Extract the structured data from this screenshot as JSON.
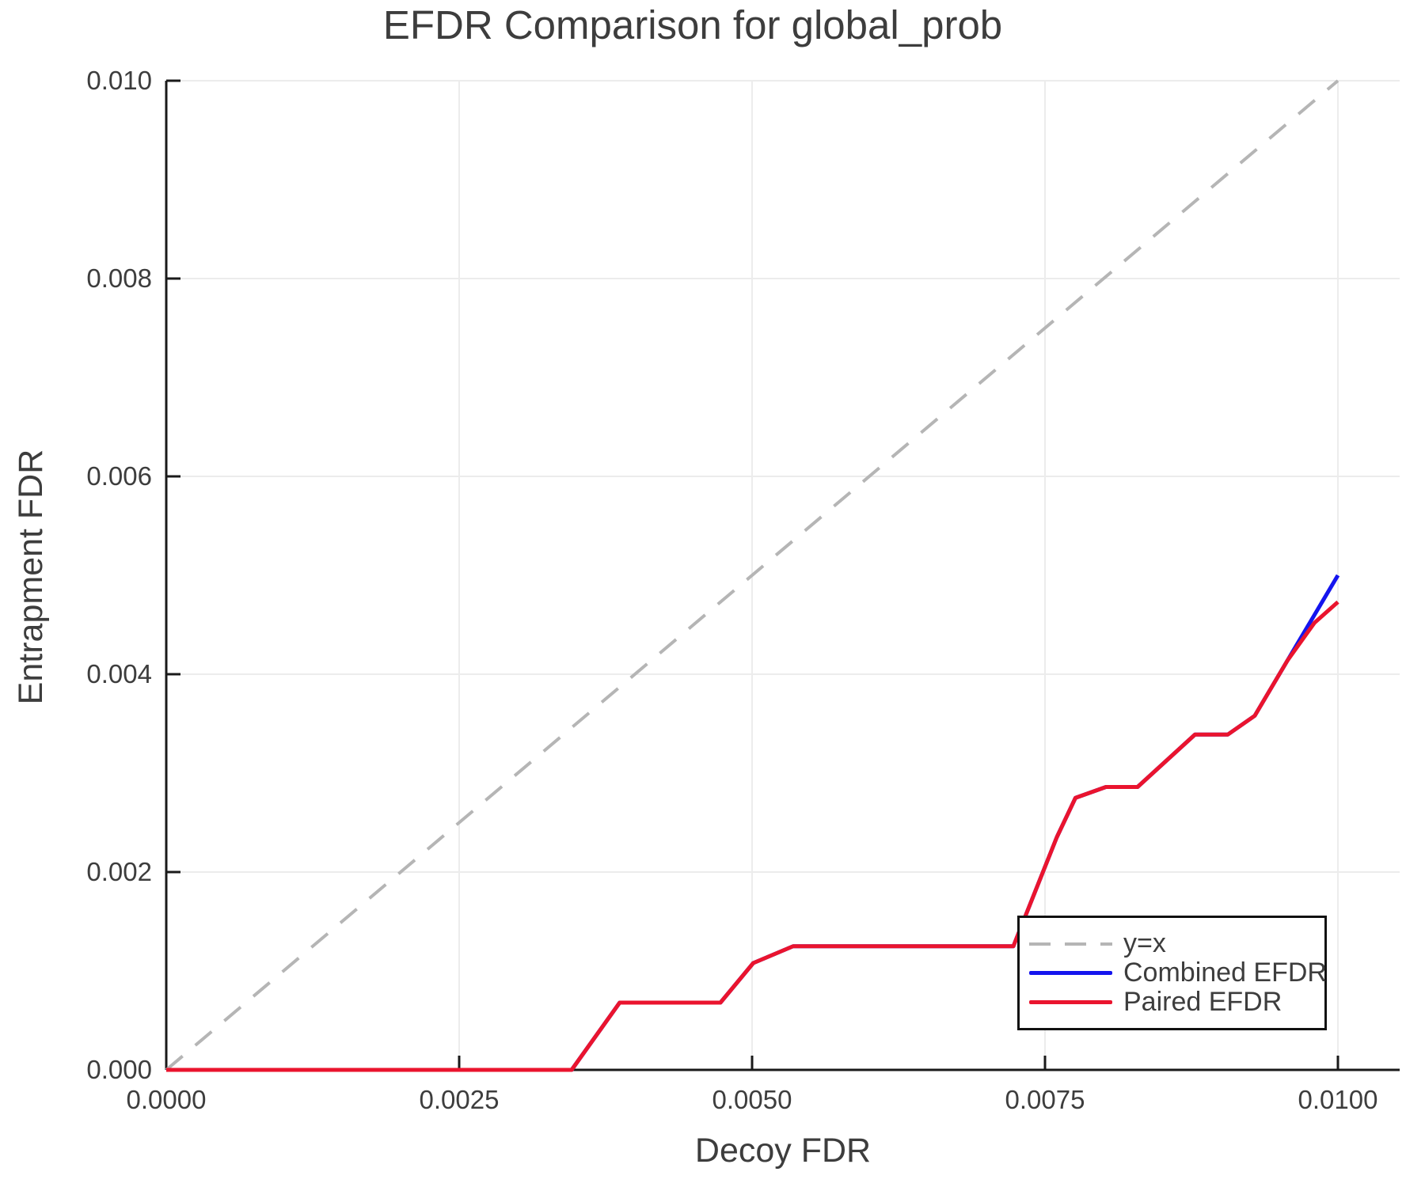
{
  "chart_data": {
    "type": "line",
    "title": "EFDR Comparison for global_prob",
    "xlabel": "Decoy FDR",
    "ylabel": "Entrapment FDR",
    "xlim": [
      0.0,
      0.01053
    ],
    "ylim": [
      0.0,
      0.01
    ],
    "grid": true,
    "x_ticks": [
      0.0,
      0.0025,
      0.005,
      0.0075,
      0.01
    ],
    "x_tick_labels": [
      "0.0000",
      "0.0025",
      "0.0050",
      "0.0075",
      "0.0100"
    ],
    "y_ticks": [
      0.0,
      0.002,
      0.004,
      0.006,
      0.008,
      0.01
    ],
    "y_tick_labels": [
      "0.000",
      "0.002",
      "0.004",
      "0.006",
      "0.008",
      "0.010"
    ],
    "legend_position": "lower right (inside plot)",
    "series": [
      {
        "name": "y=x",
        "style": "dashed",
        "color": "#b5b5b5",
        "width": 4,
        "x": [
          0.0,
          0.01
        ],
        "y": [
          0.0,
          0.01
        ]
      },
      {
        "name": "Combined EFDR",
        "style": "solid",
        "color": "#1414ee",
        "width": 5,
        "x": [
          0.0,
          0.00346,
          0.00387,
          0.00473,
          0.00501,
          0.00535,
          0.00723,
          0.0076,
          0.00776,
          0.00802,
          0.00829,
          0.00878,
          0.00906,
          0.00929,
          0.01
        ],
        "y": [
          0.0,
          0.0,
          0.00068,
          0.00068,
          0.00108,
          0.00125,
          0.00125,
          0.00235,
          0.00275,
          0.00286,
          0.00286,
          0.00339,
          0.00339,
          0.00358,
          0.005
        ]
      },
      {
        "name": "Paired EFDR",
        "style": "solid",
        "color": "#ea142e",
        "width": 5,
        "x": [
          0.0,
          0.00346,
          0.00387,
          0.00473,
          0.00501,
          0.00535,
          0.00723,
          0.0076,
          0.00776,
          0.00802,
          0.00829,
          0.00878,
          0.00906,
          0.00929,
          0.00957,
          0.0098,
          0.01
        ],
        "y": [
          0.0,
          0.0,
          0.00068,
          0.00068,
          0.00108,
          0.00125,
          0.00125,
          0.00235,
          0.00275,
          0.00286,
          0.00286,
          0.00339,
          0.00339,
          0.00358,
          0.00414,
          0.00452,
          0.00473
        ]
      }
    ]
  },
  "legend": {
    "entries": [
      {
        "label": "y=x",
        "color": "#b5b5b5",
        "style": "dashed"
      },
      {
        "label": "Combined EFDR",
        "color": "#1414ee",
        "style": "solid"
      },
      {
        "label": "Paired EFDR",
        "color": "#ea142e",
        "style": "solid"
      }
    ]
  },
  "colors": {
    "background": "#ffffff",
    "spine": "#1a1a1a",
    "gridline": "#ececec",
    "tick": "#1a1a1a",
    "text": "#3d3d3d",
    "identity_line": "#b5b5b5",
    "combined_efdr": "#1414ee",
    "paired_efdr": "#ea142e"
  }
}
